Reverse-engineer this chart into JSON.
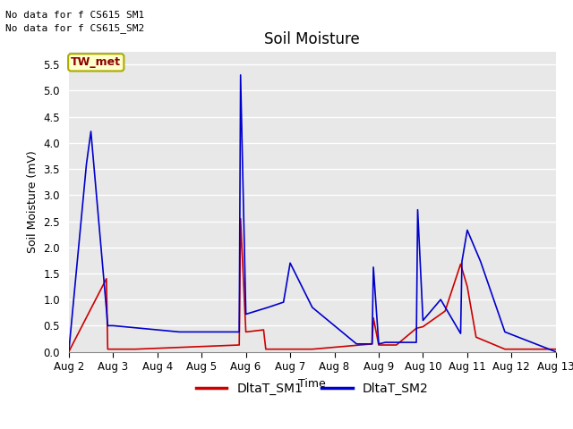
{
  "title": "Soil Moisture",
  "xlabel": "Time",
  "ylabel": "Soil Moisture (mV)",
  "fig_bg_color": "#ffffff",
  "plot_bg_color": "#e8e8e8",
  "ylim": [
    0.0,
    5.75
  ],
  "yticks": [
    0.0,
    0.5,
    1.0,
    1.5,
    2.0,
    2.5,
    3.0,
    3.5,
    4.0,
    4.5,
    5.0,
    5.5
  ],
  "xtick_labels": [
    "Aug 2",
    "Aug 3",
    "Aug 4",
    "Aug 5",
    "Aug 6",
    "Aug 7",
    "Aug 8",
    "Aug 9",
    "Aug 10",
    "Aug 11",
    "Aug 12",
    "Aug 13"
  ],
  "no_data_text1": "No data for f CS615 SM1",
  "no_data_text2": "No data for f CS615_SM2",
  "tw_met_label": "TW_met",
  "sm1_color": "#cc0000",
  "sm2_color": "#0000cc",
  "sm1_x": [
    2.0,
    2.85,
    2.88,
    3.5,
    5.85,
    5.88,
    6.0,
    6.4,
    6.45,
    6.85,
    7.5,
    8.85,
    8.88,
    9.0,
    9.4,
    9.85,
    10.0,
    10.5,
    10.85,
    11.0,
    11.2,
    11.85,
    13.0
  ],
  "sm1_y": [
    0.0,
    1.4,
    0.05,
    0.05,
    0.13,
    2.55,
    0.38,
    0.42,
    0.05,
    0.05,
    0.05,
    0.15,
    0.65,
    0.13,
    0.13,
    0.45,
    0.48,
    0.78,
    1.68,
    1.25,
    0.28,
    0.05,
    0.05
  ],
  "sm2_x": [
    2.0,
    2.4,
    2.5,
    2.85,
    2.88,
    3.0,
    4.5,
    5.85,
    5.88,
    6.0,
    6.5,
    6.85,
    7.0,
    7.5,
    8.5,
    8.85,
    8.88,
    9.0,
    9.15,
    9.85,
    9.88,
    10.0,
    10.4,
    10.85,
    10.88,
    11.0,
    11.3,
    11.85,
    13.0
  ],
  "sm2_y": [
    0.0,
    3.6,
    4.22,
    0.82,
    0.5,
    0.5,
    0.38,
    0.38,
    5.3,
    0.72,
    0.85,
    0.95,
    1.7,
    0.85,
    0.15,
    0.15,
    1.62,
    0.15,
    0.18,
    0.18,
    2.72,
    0.6,
    1.0,
    0.35,
    1.73,
    2.33,
    1.73,
    0.38,
    0.0
  ],
  "title_fontsize": 12,
  "label_fontsize": 9,
  "tick_fontsize": 8.5,
  "legend_fontsize": 10
}
